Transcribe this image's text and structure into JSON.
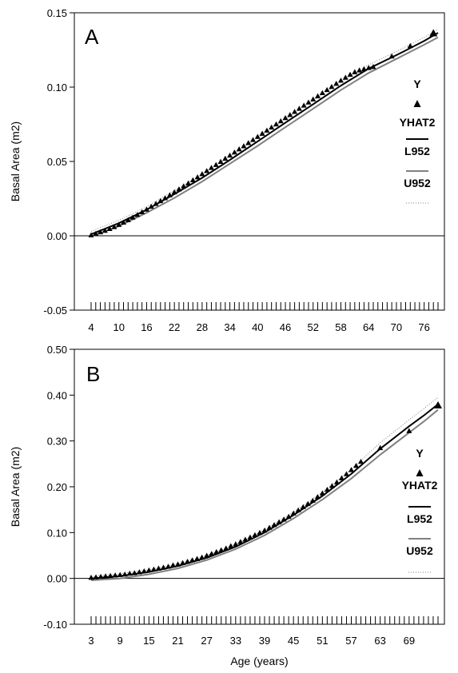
{
  "chart_data": [
    {
      "type": "line",
      "panel_label": "A",
      "ylabel": "Basal Area (m2)",
      "xlabel": "",
      "ylim": [
        -0.05,
        0.15
      ],
      "yticks": [
        "0.15",
        "0.10",
        "0.05",
        "0.00",
        "-0.05"
      ],
      "ytick_values": [
        0.15,
        0.1,
        0.05,
        0.0,
        -0.05
      ],
      "xlim": [
        4,
        79
      ],
      "xticks": [
        "4",
        "10",
        "16",
        "22",
        "28",
        "34",
        "40",
        "46",
        "52",
        "58",
        "64",
        "70",
        "76"
      ],
      "xtick_values": [
        4,
        10,
        16,
        22,
        28,
        34,
        40,
        46,
        52,
        58,
        64,
        70,
        76
      ],
      "grid": false,
      "legend": {
        "placement": "right",
        "entries": [
          {
            "label": "Y",
            "style": "triangle",
            "color": "#000000"
          },
          {
            "label": "YHAT2",
            "style": "solid",
            "color": "#000000"
          },
          {
            "label": "L952",
            "style": "solid",
            "color": "#808080"
          },
          {
            "label": "U952",
            "style": "dotted",
            "color": "#808080"
          }
        ]
      },
      "series": [
        {
          "key": "Y",
          "style": "points",
          "color": "#000000",
          "x": [
            4,
            5,
            6,
            7,
            8,
            9,
            10,
            11,
            12,
            13,
            14,
            15,
            16,
            17,
            18,
            19,
            20,
            21,
            22,
            23,
            24,
            25,
            26,
            27,
            28,
            29,
            30,
            31,
            32,
            33,
            34,
            35,
            36,
            37,
            38,
            39,
            40,
            41,
            42,
            43,
            44,
            45,
            46,
            47,
            48,
            49,
            50,
            51,
            52,
            53,
            54,
            55,
            56,
            57,
            58,
            59,
            60,
            61,
            62,
            63,
            64,
            65,
            69,
            73,
            78
          ],
          "y": [
            0.0005,
            0.0015,
            0.0025,
            0.0035,
            0.0047,
            0.006,
            0.0075,
            0.009,
            0.0107,
            0.0124,
            0.0142,
            0.016,
            0.0178,
            0.0197,
            0.0216,
            0.0235,
            0.0254,
            0.0274,
            0.0294,
            0.0314,
            0.0334,
            0.0354,
            0.0375,
            0.0395,
            0.0416,
            0.0437,
            0.0458,
            0.0478,
            0.0499,
            0.052,
            0.0541,
            0.0562,
            0.0583,
            0.0604,
            0.0625,
            0.0646,
            0.0667,
            0.0688,
            0.0709,
            0.073,
            0.0751,
            0.0772,
            0.0793,
            0.0814,
            0.0835,
            0.0856,
            0.0877,
            0.0898,
            0.0919,
            0.094,
            0.0961,
            0.0982,
            0.1003,
            0.1024,
            0.1045,
            0.1065,
            0.1085,
            0.1102,
            0.1114,
            0.1122,
            0.113,
            0.1137,
            0.1208,
            0.1278,
            0.1363
          ]
        },
        {
          "key": "YHAT2",
          "style": "solid",
          "color": "#000000",
          "x": [
            4,
            10,
            16,
            22,
            28,
            34,
            40,
            46,
            52,
            58,
            64,
            70,
            76,
            79
          ],
          "y": [
            0.001,
            0.0085,
            0.0175,
            0.028,
            0.039,
            0.051,
            0.0635,
            0.076,
            0.0885,
            0.101,
            0.1125,
            0.1215,
            0.131,
            0.1365
          ]
        },
        {
          "key": "L952",
          "style": "solid",
          "color": "#808080",
          "x": [
            4,
            10,
            16,
            22,
            28,
            34,
            40,
            46,
            52,
            58,
            64,
            70,
            76,
            79
          ],
          "y": [
            -0.0005,
            0.0065,
            0.0155,
            0.0255,
            0.0365,
            0.0485,
            0.0605,
            0.073,
            0.0855,
            0.098,
            0.1095,
            0.119,
            0.1285,
            0.1335
          ]
        },
        {
          "key": "U952",
          "style": "dotted",
          "color": "#808080",
          "x": [
            4,
            10,
            16,
            22,
            28,
            34,
            40,
            46,
            52,
            58,
            64,
            70,
            76,
            79
          ],
          "y": [
            0.003,
            0.0105,
            0.0195,
            0.0305,
            0.0415,
            0.0535,
            0.066,
            0.0785,
            0.091,
            0.1035,
            0.115,
            0.124,
            0.1335,
            0.139
          ]
        }
      ]
    },
    {
      "type": "line",
      "panel_label": "B",
      "ylabel": "Basal Area (m2)",
      "xlabel": "Age (years)",
      "ylim": [
        -0.1,
        0.5
      ],
      "yticks": [
        "0.50",
        "0.40",
        "0.30",
        "0.20",
        "0.10",
        "0.00",
        "-0.10"
      ],
      "ytick_values": [
        0.5,
        0.4,
        0.3,
        0.2,
        0.1,
        0.0,
        -0.1
      ],
      "xlim": [
        3,
        75
      ],
      "xticks": [
        "3",
        "9",
        "15",
        "21",
        "27",
        "33",
        "39",
        "45",
        "51",
        "57",
        "63",
        "69"
      ],
      "xtick_values": [
        3,
        9,
        15,
        21,
        27,
        33,
        39,
        45,
        51,
        57,
        63,
        69
      ],
      "grid": false,
      "legend": {
        "placement": "right",
        "entries": [
          {
            "label": "Y",
            "style": "triangle",
            "color": "#000000"
          },
          {
            "label": "YHAT2",
            "style": "solid",
            "color": "#000000"
          },
          {
            "label": "L952",
            "style": "solid",
            "color": "#808080"
          },
          {
            "label": "U952",
            "style": "dotted",
            "color": "#808080"
          }
        ]
      },
      "series": [
        {
          "key": "Y",
          "style": "points",
          "color": "#000000",
          "x": [
            3,
            4,
            5,
            6,
            7,
            8,
            9,
            10,
            11,
            12,
            13,
            14,
            15,
            16,
            17,
            18,
            19,
            20,
            21,
            22,
            23,
            24,
            25,
            26,
            27,
            28,
            29,
            30,
            31,
            32,
            33,
            34,
            35,
            36,
            37,
            38,
            39,
            40,
            41,
            42,
            43,
            44,
            45,
            46,
            47,
            48,
            49,
            50,
            51,
            52,
            53,
            54,
            55,
            56,
            57,
            58,
            59,
            63,
            69,
            75
          ],
          "y": [
            0.002,
            0.003,
            0.004,
            0.005,
            0.006,
            0.007,
            0.008,
            0.009,
            0.011,
            0.012,
            0.014,
            0.016,
            0.018,
            0.02,
            0.022,
            0.024,
            0.026,
            0.029,
            0.031,
            0.034,
            0.037,
            0.04,
            0.043,
            0.046,
            0.05,
            0.054,
            0.058,
            0.062,
            0.066,
            0.071,
            0.075,
            0.08,
            0.085,
            0.09,
            0.095,
            0.1,
            0.105,
            0.111,
            0.117,
            0.123,
            0.129,
            0.135,
            0.142,
            0.149,
            0.156,
            0.163,
            0.17,
            0.178,
            0.186,
            0.194,
            0.202,
            0.21,
            0.219,
            0.228,
            0.237,
            0.246,
            0.255,
            0.285,
            0.322,
            0.378
          ]
        },
        {
          "key": "YHAT2",
          "style": "solid",
          "color": "#000000",
          "x": [
            3,
            9,
            15,
            21,
            27,
            33,
            39,
            45,
            51,
            57,
            63,
            69,
            72,
            75
          ],
          "y": [
            0.0,
            0.005,
            0.014,
            0.027,
            0.045,
            0.069,
            0.1,
            0.138,
            0.18,
            0.228,
            0.283,
            0.332,
            0.355,
            0.38
          ]
        },
        {
          "key": "L952",
          "style": "solid",
          "color": "#808080",
          "x": [
            3,
            9,
            15,
            21,
            27,
            33,
            39,
            45,
            51,
            57,
            63,
            69,
            72,
            75
          ],
          "y": [
            -0.004,
            0.0,
            0.009,
            0.022,
            0.04,
            0.064,
            0.094,
            0.131,
            0.172,
            0.218,
            0.27,
            0.318,
            0.342,
            0.368
          ]
        },
        {
          "key": "U952",
          "style": "dotted",
          "color": "#808080",
          "x": [
            3,
            9,
            15,
            21,
            27,
            33,
            39,
            45,
            51,
            57,
            63,
            69,
            72,
            75
          ],
          "y": [
            0.004,
            0.01,
            0.019,
            0.032,
            0.05,
            0.074,
            0.106,
            0.145,
            0.188,
            0.238,
            0.296,
            0.346,
            0.37,
            0.395
          ]
        }
      ]
    }
  ]
}
